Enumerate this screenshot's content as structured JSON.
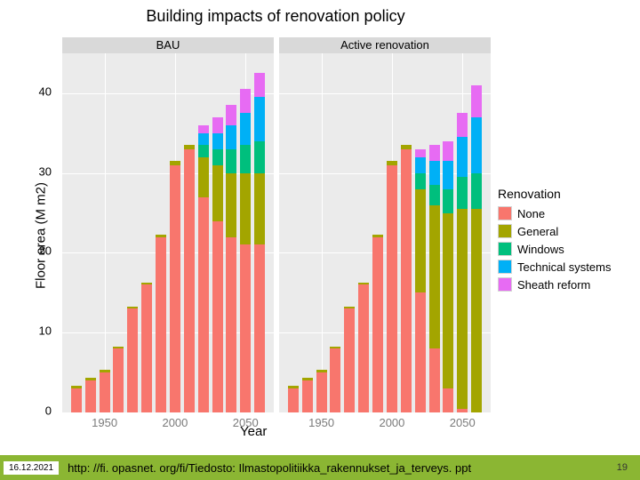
{
  "title": "Building impacts of renovation policy",
  "y_axis_label": "Floor area (M m2)",
  "x_axis_label": "Year",
  "ylim": [
    0,
    45
  ],
  "yticks": [
    0,
    10,
    20,
    30,
    40
  ],
  "xticks": [
    1950,
    2000,
    2050
  ],
  "panel_bg": "#ebebeb",
  "grid_color": "#ffffff",
  "strip_bg": "#d9d9d9",
  "legend": {
    "title": "Renovation",
    "items": [
      {
        "key": "None",
        "color": "#f8766d"
      },
      {
        "key": "General",
        "color": "#a3a500"
      },
      {
        "key": "Windows",
        "color": "#00bf7d"
      },
      {
        "key": "Technical systems",
        "color": "#00b0f6"
      },
      {
        "key": "Sheath reform",
        "color": "#e76bf3"
      }
    ]
  },
  "series_order": [
    "None",
    "General",
    "Windows",
    "Technical systems",
    "Sheath reform"
  ],
  "colors": {
    "None": "#f8766d",
    "General": "#a3a500",
    "Windows": "#00bf7d",
    "Technical systems": "#00b0f6",
    "Sheath reform": "#e76bf3"
  },
  "panels": [
    {
      "label": "BAU",
      "years": [
        1930,
        1940,
        1950,
        1960,
        1970,
        1980,
        1990,
        2000,
        2010,
        2020,
        2030,
        2040,
        2050,
        2060
      ],
      "stacks": [
        {
          "None": 3,
          "General": 0.3,
          "Windows": 0,
          "Technical systems": 0,
          "Sheath reform": 0
        },
        {
          "None": 4,
          "General": 0.3,
          "Windows": 0,
          "Technical systems": 0,
          "Sheath reform": 0
        },
        {
          "None": 5,
          "General": 0.3,
          "Windows": 0,
          "Technical systems": 0,
          "Sheath reform": 0
        },
        {
          "None": 8,
          "General": 0.3,
          "Windows": 0,
          "Technical systems": 0,
          "Sheath reform": 0
        },
        {
          "None": 13,
          "General": 0.3,
          "Windows": 0,
          "Technical systems": 0,
          "Sheath reform": 0
        },
        {
          "None": 16,
          "General": 0.3,
          "Windows": 0,
          "Technical systems": 0,
          "Sheath reform": 0
        },
        {
          "None": 22,
          "General": 0.3,
          "Windows": 0,
          "Technical systems": 0,
          "Sheath reform": 0
        },
        {
          "None": 31,
          "General": 0.5,
          "Windows": 0,
          "Technical systems": 0,
          "Sheath reform": 0
        },
        {
          "None": 33,
          "General": 0.5,
          "Windows": 0,
          "Technical systems": 0,
          "Sheath reform": 0
        },
        {
          "None": 27,
          "General": 5,
          "Windows": 1.5,
          "Technical systems": 1.5,
          "Sheath reform": 1
        },
        {
          "None": 24,
          "General": 7,
          "Windows": 2,
          "Technical systems": 2,
          "Sheath reform": 2
        },
        {
          "None": 22,
          "General": 8,
          "Windows": 3,
          "Technical systems": 3,
          "Sheath reform": 2.5
        },
        {
          "None": 21,
          "General": 9,
          "Windows": 3.5,
          "Technical systems": 4,
          "Sheath reform": 3
        },
        {
          "None": 21,
          "General": 9,
          "Windows": 4,
          "Technical systems": 5.5,
          "Sheath reform": 3
        }
      ]
    },
    {
      "label": "Active renovation",
      "years": [
        1930,
        1940,
        1950,
        1960,
        1970,
        1980,
        1990,
        2000,
        2010,
        2020,
        2030,
        2040,
        2050,
        2060
      ],
      "stacks": [
        {
          "None": 3,
          "General": 0.3,
          "Windows": 0,
          "Technical systems": 0,
          "Sheath reform": 0
        },
        {
          "None": 4,
          "General": 0.3,
          "Windows": 0,
          "Technical systems": 0,
          "Sheath reform": 0
        },
        {
          "None": 5,
          "General": 0.3,
          "Windows": 0,
          "Technical systems": 0,
          "Sheath reform": 0
        },
        {
          "None": 8,
          "General": 0.3,
          "Windows": 0,
          "Technical systems": 0,
          "Sheath reform": 0
        },
        {
          "None": 13,
          "General": 0.3,
          "Windows": 0,
          "Technical systems": 0,
          "Sheath reform": 0
        },
        {
          "None": 16,
          "General": 0.3,
          "Windows": 0,
          "Technical systems": 0,
          "Sheath reform": 0
        },
        {
          "None": 22,
          "General": 0.3,
          "Windows": 0,
          "Technical systems": 0,
          "Sheath reform": 0
        },
        {
          "None": 31,
          "General": 0.5,
          "Windows": 0,
          "Technical systems": 0,
          "Sheath reform": 0
        },
        {
          "None": 33,
          "General": 0.5,
          "Windows": 0,
          "Technical systems": 0,
          "Sheath reform": 0
        },
        {
          "None": 15,
          "General": 13,
          "Windows": 2,
          "Technical systems": 2,
          "Sheath reform": 1
        },
        {
          "None": 8,
          "General": 18,
          "Windows": 2.5,
          "Technical systems": 3,
          "Sheath reform": 2
        },
        {
          "None": 3,
          "General": 22,
          "Windows": 3,
          "Technical systems": 3.5,
          "Sheath reform": 2.5
        },
        {
          "None": 0.5,
          "General": 25,
          "Windows": 4,
          "Technical systems": 5,
          "Sheath reform": 3
        },
        {
          "None": 0,
          "General": 25.5,
          "Windows": 4.5,
          "Technical systems": 7,
          "Sheath reform": 4
        }
      ]
    }
  ],
  "footer": {
    "bg": "#8bb633",
    "date": "16.12.2021",
    "link": "http: //fi. opasnet. org/fi/Tiedosto: Ilmastopolitiikka_rakennukset_ja_terveys. ppt",
    "page": "19"
  }
}
